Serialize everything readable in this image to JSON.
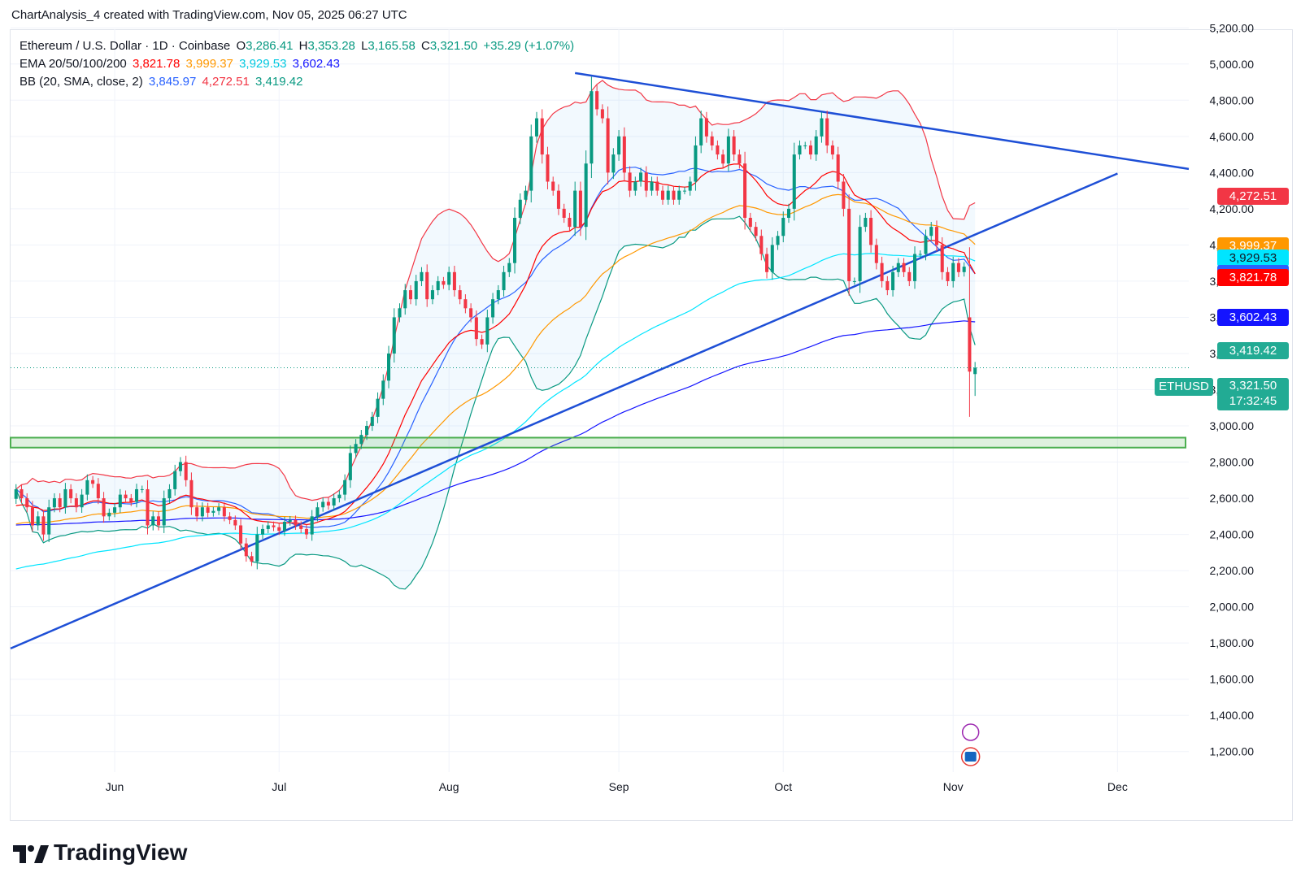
{
  "header": {
    "text": "ChartAnalysis_4 created with TradingView.com, Nov 05, 2025 06:27 UTC"
  },
  "legend": {
    "symbol": "Ethereum / U.S. Dollar · 1D · Coinbase",
    "o_label": "O",
    "o_value": "3,286.41",
    "h_label": "H",
    "h_value": "3,353.28",
    "l_label": "L",
    "l_value": "3,165.58",
    "c_label": "C",
    "c_value": "3,321.50",
    "change": "+35.29 (+1.07%)",
    "ema_label": "EMA 20/50/100/200",
    "ema_values": [
      "3,821.78",
      "3,999.37",
      "3,929.53",
      "3,602.43"
    ],
    "bb_label": "BB (20, SMA, close, 2)",
    "bb_values": [
      "3,845.97",
      "4,272.51",
      "3,419.42"
    ]
  },
  "price_tags": [
    {
      "value": "4,272.51",
      "price": 4272.51,
      "color": "#f23645"
    },
    {
      "value": "3,999.37",
      "price": 3999.37,
      "color": "#ff9800"
    },
    {
      "value": "3,929.53",
      "price": 3929.53,
      "color": "#00e5ff"
    },
    {
      "value": "3,845.97",
      "price": 3845.97,
      "color": "#2962ff"
    },
    {
      "value": "3,821.78",
      "price": 3821.78,
      "color": "#ff0000"
    },
    {
      "value": "3,602.43",
      "price": 3602.43,
      "color": "#1414ff"
    },
    {
      "value": "3,419.42",
      "price": 3419.42,
      "color": "#22ab94"
    }
  ],
  "last_price": {
    "ticker": "ETHUSD",
    "value": "3,321.50",
    "countdown": "17:32:45",
    "color": "#22ab94"
  },
  "colors": {
    "up": "#089981",
    "down": "#f23645",
    "ema20": "#ff0000",
    "ema50": "#ff9800",
    "ema100": "#00e5ff",
    "ema200": "#1414ff",
    "bb_basis": "#2962ff",
    "bb_upper": "#f23645",
    "bb_lower": "#089981",
    "trendline": "#1e4fd6",
    "support_zone": "#4caf50"
  },
  "chart_data": {
    "type": "candlestick",
    "title": "Ethereum / U.S. Dollar · 1D · Coinbase",
    "y_range": [
      1100,
      5300
    ],
    "y_ticks": [
      5200,
      5000,
      4800,
      4600,
      4400,
      4200,
      4000,
      3800,
      3600,
      3400,
      3200,
      3000,
      2800,
      2600,
      2400,
      2200,
      2000,
      1800,
      1600,
      1400,
      1200
    ],
    "y_tick_labels": [
      "5,200.00",
      "5,000.00",
      "4,800.00",
      "4,600.00",
      "4,400.00",
      "4,200.00",
      "4,000.00",
      "3,800.00",
      "3,600.00",
      "3,400.00",
      "3,200.00",
      "3,000.00",
      "2,800.00",
      "2,600.00",
      "2,400.00",
      "2,200.00",
      "2,000.00",
      "1,800.00",
      "1,600.00",
      "1,400.00",
      "1,200.00"
    ],
    "x_axis": {
      "start": "2025-05-13",
      "end": "2025-12-14"
    },
    "x_months": [
      {
        "label": "Jun",
        "date": "2025-06-01"
      },
      {
        "label": "Jul",
        "date": "2025-07-01"
      },
      {
        "label": "Aug",
        "date": "2025-08-01"
      },
      {
        "label": "Sep",
        "date": "2025-09-01"
      },
      {
        "label": "Oct",
        "date": "2025-10-01"
      },
      {
        "label": "Nov",
        "date": "2025-11-01"
      },
      {
        "label": "Dec",
        "date": "2025-12-01"
      }
    ],
    "close_series": {
      "start_date": "2025-05-14",
      "values": [
        2650,
        2600,
        2550,
        2450,
        2500,
        2400,
        2550,
        2600,
        2550,
        2650,
        2600,
        2550,
        2620,
        2700,
        2680,
        2600,
        2500,
        2520,
        2550,
        2620,
        2600,
        2580,
        2650,
        2650,
        2450,
        2500,
        2450,
        2600,
        2650,
        2750,
        2800,
        2700,
        2550,
        2500,
        2550,
        2520,
        2530,
        2550,
        2500,
        2480,
        2450,
        2350,
        2280,
        2250,
        2400,
        2430,
        2450,
        2440,
        2420,
        2470,
        2480,
        2450,
        2430,
        2400,
        2500,
        2550,
        2580,
        2560,
        2600,
        2620,
        2700,
        2850,
        2900,
        2950,
        3000,
        3050,
        3150,
        3250,
        3400,
        3600,
        3650,
        3750,
        3700,
        3800,
        3850,
        3700,
        3750,
        3800,
        3780,
        3850,
        3750,
        3700,
        3650,
        3600,
        3480,
        3450,
        3600,
        3700,
        3750,
        3850,
        3900,
        4150,
        4250,
        4300,
        4600,
        4700,
        4500,
        4350,
        4300,
        4200,
        4150,
        4100,
        4300,
        4100,
        4450,
        4850,
        4750,
        4700,
        4400,
        4500,
        4600,
        4400,
        4300,
        4350,
        4400,
        4300,
        4350,
        4300,
        4250,
        4300,
        4250,
        4300,
        4300,
        4350,
        4550,
        4700,
        4600,
        4550,
        4500,
        4450,
        4600,
        4500,
        4450,
        4150,
        4100,
        4050,
        3950,
        3850,
        4000,
        4050,
        4150,
        4200,
        4500,
        4550,
        4550,
        4500,
        4600,
        4700,
        4550,
        4500,
        4350,
        4200,
        3800,
        3800,
        4100,
        4150,
        4000,
        3900,
        3800,
        3750,
        3850,
        3900,
        3850,
        3800,
        3950,
        3950,
        4050,
        4100,
        4000,
        3850,
        3800,
        3900,
        3850,
        3880,
        3300,
        3321.5
      ]
    },
    "last": {
      "open": 3286.41,
      "high": 3353.28,
      "low": 3165.58,
      "close": 3321.5,
      "change": 35.29,
      "change_pct": 1.07
    },
    "ema": {
      "ema20": 3821.78,
      "ema50": 3999.37,
      "ema100": 3929.53,
      "ema200": 3602.43
    },
    "bollinger": {
      "basis": 3845.97,
      "upper": 4272.51,
      "lower": 3419.42
    },
    "trendlines": [
      {
        "name": "ascending-support",
        "from": {
          "date": "2025-05-13",
          "price": 1770
        },
        "to": {
          "date": "2025-12-01",
          "price": 4395
        }
      },
      {
        "name": "descending-resistance",
        "from": {
          "date": "2025-08-24",
          "price": 4950
        },
        "to": {
          "date": "2025-12-14",
          "price": 4420
        }
      }
    ],
    "support_zone": {
      "low": 2880,
      "high": 2935
    }
  },
  "footer": {
    "brand": "TradingView"
  }
}
